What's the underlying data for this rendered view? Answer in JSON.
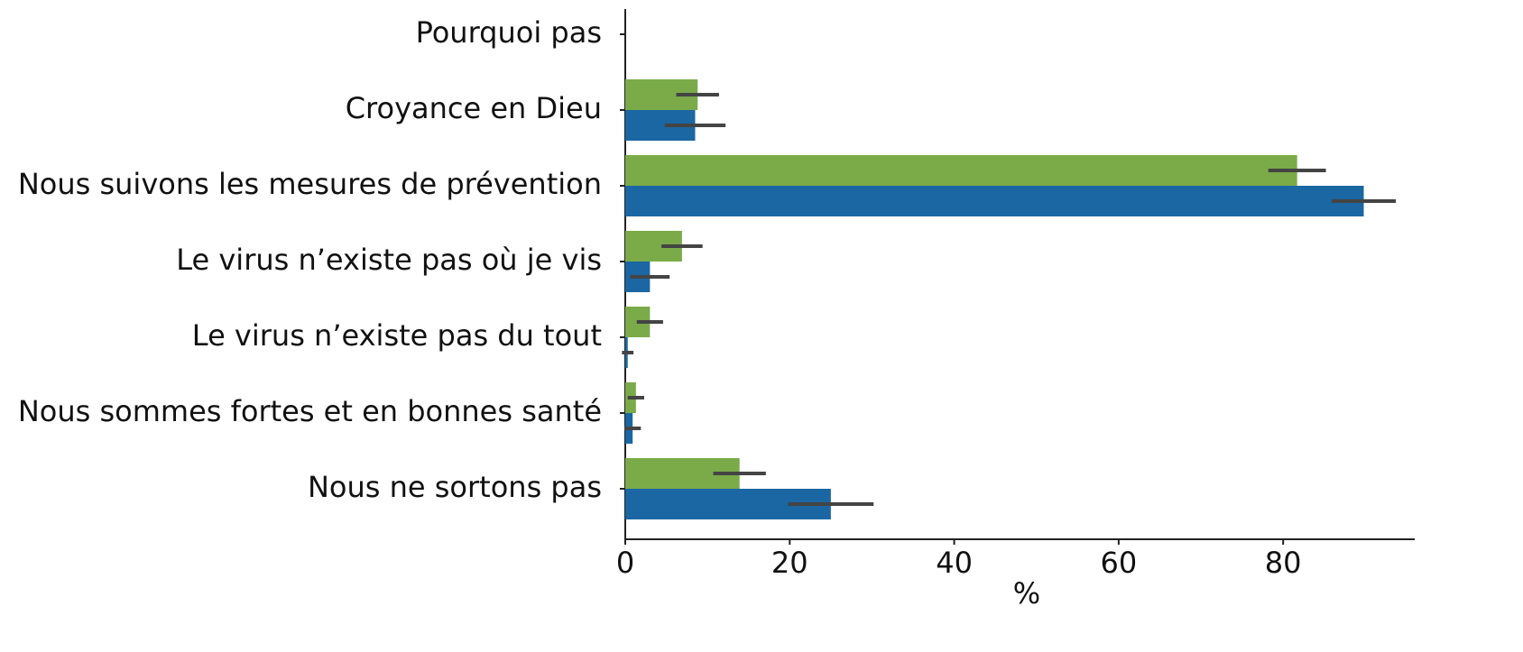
{
  "chart_data": {
    "type": "bar",
    "orientation": "horizontal",
    "categories": [
      "Pourquoi pas",
      "Croyance en Dieu",
      "Nous suivons les mesures de prévention",
      "Le virus n’existe pas où je vis",
      "Le virus n’existe pas du tout",
      "Nous sommes fortes et en bonnes santé",
      "Nous ne sortons pas"
    ],
    "series": [
      {
        "color": "#7aab48",
        "values": [
          0,
          8.8,
          81.7,
          6.9,
          3.0,
          1.3,
          13.9
        ],
        "errors": [
          0,
          2.6,
          3.5,
          2.5,
          1.6,
          1.0,
          3.2
        ]
      },
      {
        "color": "#1a67a3",
        "values": [
          0,
          8.5,
          89.8,
          3.0,
          0.3,
          0.9,
          25.0
        ],
        "errors": [
          0,
          3.7,
          3.9,
          2.4,
          0.7,
          1.0,
          5.2
        ]
      }
    ],
    "xlabel": "%",
    "xlim": [
      0,
      96
    ],
    "xticks": [
      0,
      20,
      40,
      60,
      80
    ],
    "error_color": "#444444"
  }
}
